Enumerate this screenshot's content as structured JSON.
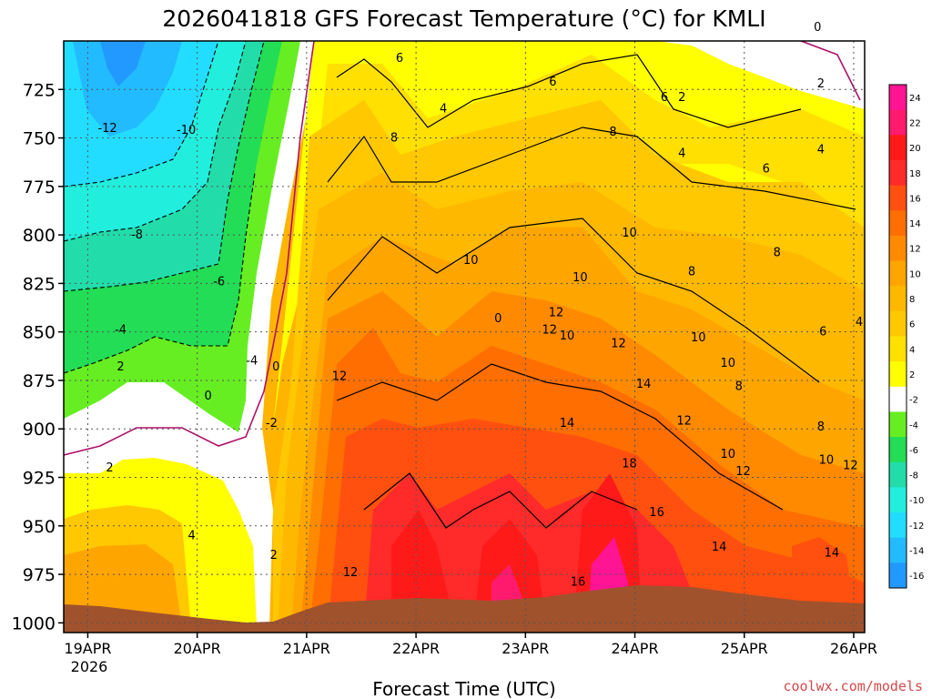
{
  "chart_data": {
    "type": "heatmap",
    "title": "2026041818 GFS Forecast Temperature (°C) for KMLI",
    "xlabel": "Forecast Time (UTC)",
    "ylabel": "",
    "credit": "coolwx.com/models",
    "x_ticks": [
      "19APR",
      "20APR",
      "21APR",
      "22APR",
      "23APR",
      "24APR",
      "25APR",
      "26APR"
    ],
    "x_year_label": "2026",
    "y_ticks": [
      725,
      750,
      775,
      800,
      825,
      850,
      875,
      900,
      925,
      950,
      975,
      1000
    ],
    "y_axis_reversed": true,
    "colorbar": {
      "levels": [
        24,
        22,
        20,
        18,
        16,
        14,
        12,
        10,
        8,
        6,
        4,
        2,
        -2,
        -4,
        -6,
        -8,
        -10,
        -12,
        -14,
        -16
      ],
      "colors": [
        "#ff1493",
        "#ff1a6e",
        "#ff1a1a",
        "#ff2a2a",
        "#ff5010",
        "#ff6e00",
        "#ff8a00",
        "#ffa500",
        "#ffb800",
        "#ffc800",
        "#ffe000",
        "#ffff00",
        "#ffffff",
        "#66ee22",
        "#22dd55",
        "#22ddaa",
        "#22eedd",
        "#22ddff",
        "#22bbff",
        "#2299ff"
      ]
    },
    "contour_labels": [
      {
        "text": "-12",
        "t": 0.18,
        "p": 745
      },
      {
        "text": "-10",
        "t": 0.9,
        "p": 746
      },
      {
        "text": "-8",
        "t": 0.45,
        "p": 800
      },
      {
        "text": "-6",
        "t": 1.2,
        "p": 824
      },
      {
        "text": "-4",
        "t": 0.3,
        "p": 849
      },
      {
        "text": "2",
        "t": 0.3,
        "p": 868
      },
      {
        "text": "-4",
        "t": 1.5,
        "p": 865
      },
      {
        "text": "0",
        "t": 1.72,
        "p": 868
      },
      {
        "text": "0",
        "t": 1.1,
        "p": 883
      },
      {
        "text": "-2",
        "t": 1.68,
        "p": 897
      },
      {
        "text": "2",
        "t": 0.2,
        "p": 920
      },
      {
        "text": "4",
        "t": 0.95,
        "p": 955
      },
      {
        "text": "2",
        "t": 1.7,
        "p": 965
      },
      {
        "text": "6",
        "t": 2.85,
        "p": 709
      },
      {
        "text": "4",
        "t": 3.25,
        "p": 735
      },
      {
        "text": "8",
        "t": 2.8,
        "p": 750
      },
      {
        "text": "6",
        "t": 4.25,
        "p": 721
      },
      {
        "text": "6",
        "t": 5.27,
        "p": 729
      },
      {
        "text": "2",
        "t": 5.43,
        "p": 729
      },
      {
        "text": "2",
        "t": 6.7,
        "p": 722
      },
      {
        "text": "0",
        "t": 6.67,
        "p": 693
      },
      {
        "text": "8",
        "t": 4.8,
        "p": 747
      },
      {
        "text": "4",
        "t": 5.43,
        "p": 758
      },
      {
        "text": "4",
        "t": 6.7,
        "p": 756
      },
      {
        "text": "6",
        "t": 6.2,
        "p": 766
      },
      {
        "text": "10",
        "t": 3.5,
        "p": 813
      },
      {
        "text": "10",
        "t": 4.95,
        "p": 799
      },
      {
        "text": "10",
        "t": 4.5,
        "p": 822
      },
      {
        "text": "8",
        "t": 5.52,
        "p": 819
      },
      {
        "text": "8",
        "t": 6.3,
        "p": 809
      },
      {
        "text": "12",
        "t": 4.28,
        "p": 840
      },
      {
        "text": "0",
        "t": 3.75,
        "p": 843
      },
      {
        "text": "12",
        "t": 4.22,
        "p": 849
      },
      {
        "text": "10",
        "t": 4.38,
        "p": 852
      },
      {
        "text": "12",
        "t": 4.85,
        "p": 856
      },
      {
        "text": "10",
        "t": 5.58,
        "p": 853
      },
      {
        "text": "10",
        "t": 5.85,
        "p": 866
      },
      {
        "text": "6",
        "t": 6.72,
        "p": 850
      },
      {
        "text": "4",
        "t": 7.05,
        "p": 845
      },
      {
        "text": "12",
        "t": 2.3,
        "p": 873
      },
      {
        "text": "14",
        "t": 5.08,
        "p": 877
      },
      {
        "text": "8",
        "t": 5.95,
        "p": 878
      },
      {
        "text": "14",
        "t": 4.38,
        "p": 897
      },
      {
        "text": "12",
        "t": 5.45,
        "p": 896
      },
      {
        "text": "8",
        "t": 6.7,
        "p": 899
      },
      {
        "text": "18",
        "t": 4.95,
        "p": 918
      },
      {
        "text": "10",
        "t": 5.85,
        "p": 913
      },
      {
        "text": "10",
        "t": 6.75,
        "p": 916
      },
      {
        "text": "12",
        "t": 6.97,
        "p": 919
      },
      {
        "text": "12",
        "t": 5.99,
        "p": 922
      },
      {
        "text": "16",
        "t": 5.2,
        "p": 943
      },
      {
        "text": "14",
        "t": 5.77,
        "p": 961
      },
      {
        "text": "14",
        "t": 6.8,
        "p": 964
      },
      {
        "text": "12",
        "t": 2.4,
        "p": 974
      },
      {
        "text": "16",
        "t": 4.48,
        "p": 979
      }
    ]
  }
}
